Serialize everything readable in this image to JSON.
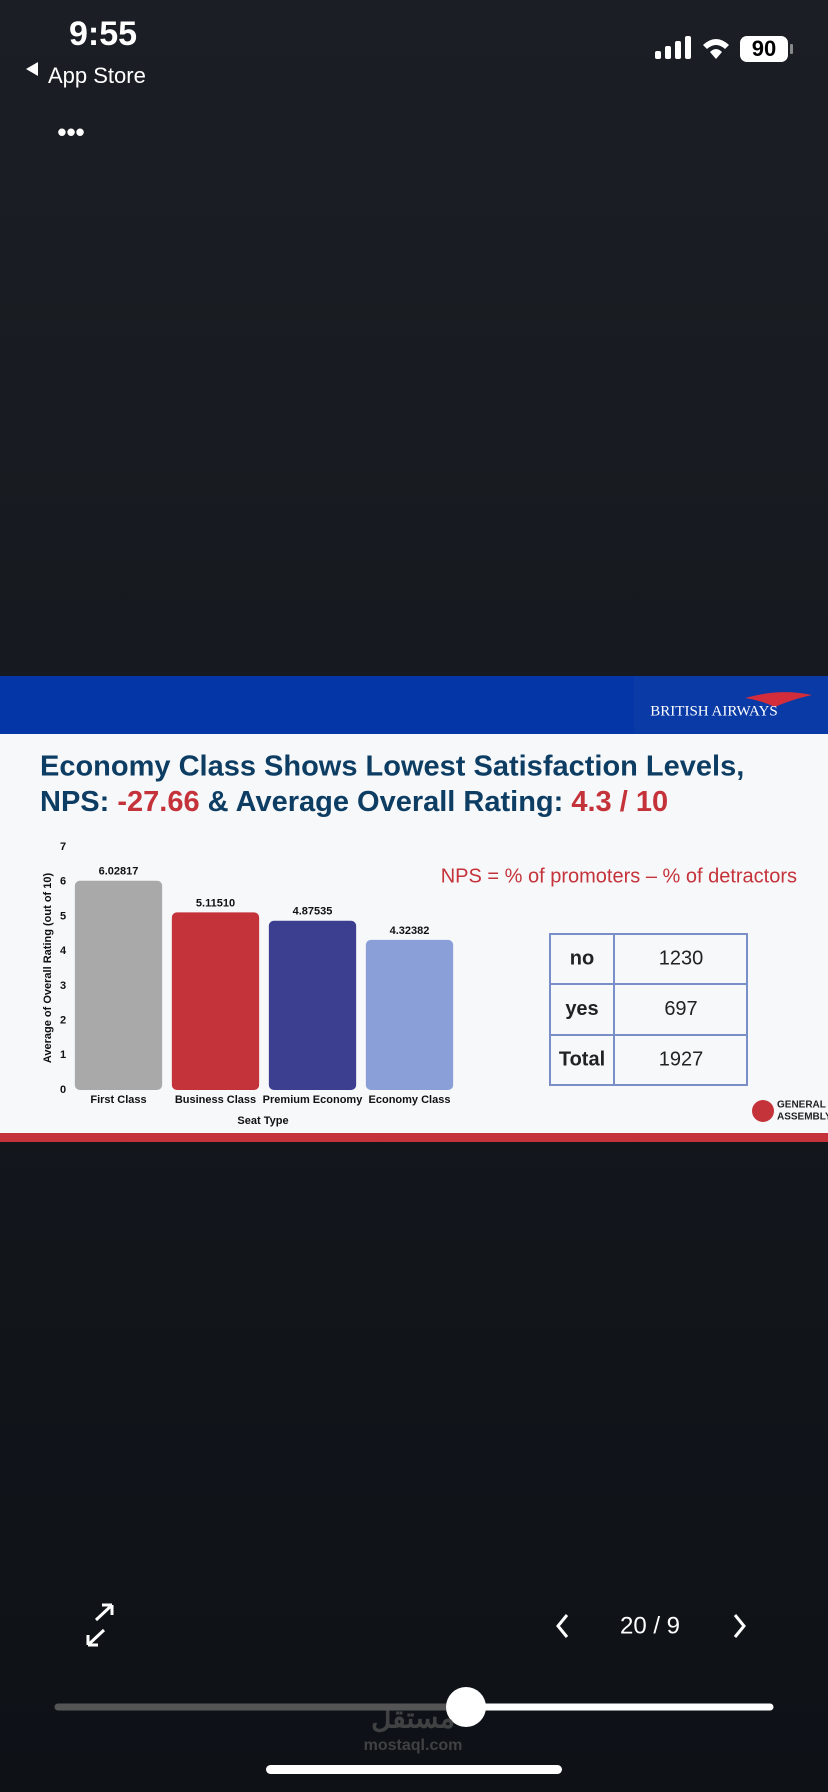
{
  "status": {
    "time": "9:55",
    "back": "App Store",
    "battery": "90"
  },
  "menu": "•••",
  "slide": {
    "brand": "BRITISH AIRWAYS",
    "title": {
      "line1": "Economy Class Shows Lowest Satisfaction Levels,",
      "nps_label": "NPS:",
      "nps_value": "-27.66",
      "rating_label": "& Average Overall Rating:",
      "rating_value": "4.3 / 10"
    },
    "formula": "NPS = % of promoters – % of detractors",
    "table": {
      "rows": [
        [
          "no",
          1230
        ],
        [
          "yes",
          697
        ],
        [
          "Total",
          1927
        ]
      ]
    },
    "logo": [
      "GENERAL",
      "ASSEMBLY"
    ]
  },
  "chart_data": {
    "type": "bar",
    "categories": [
      "First Class",
      "Business Class",
      "Premium Economy",
      "Economy Class"
    ],
    "values": [
      6.02817,
      5.1151,
      4.87535,
      4.32382
    ],
    "value_labels": [
      "6.02817",
      "5.11510",
      "4.87535",
      "4.32382"
    ],
    "colors": [
      "#a9a9a9",
      "#c5333a",
      "#3c3f8f",
      "#8a9fd8"
    ],
    "x_label": "Seat Type",
    "y_label": "Average of Overall Rating (out of 10)",
    "ylim": [
      0,
      7
    ],
    "yticks": [
      0,
      1,
      2,
      3,
      4,
      5,
      6,
      7
    ],
    "grid": false
  },
  "controls": {
    "page": "20 / 9"
  },
  "watermark": {
    "arabic": "مستقل",
    "latin": "mostaql.com"
  }
}
